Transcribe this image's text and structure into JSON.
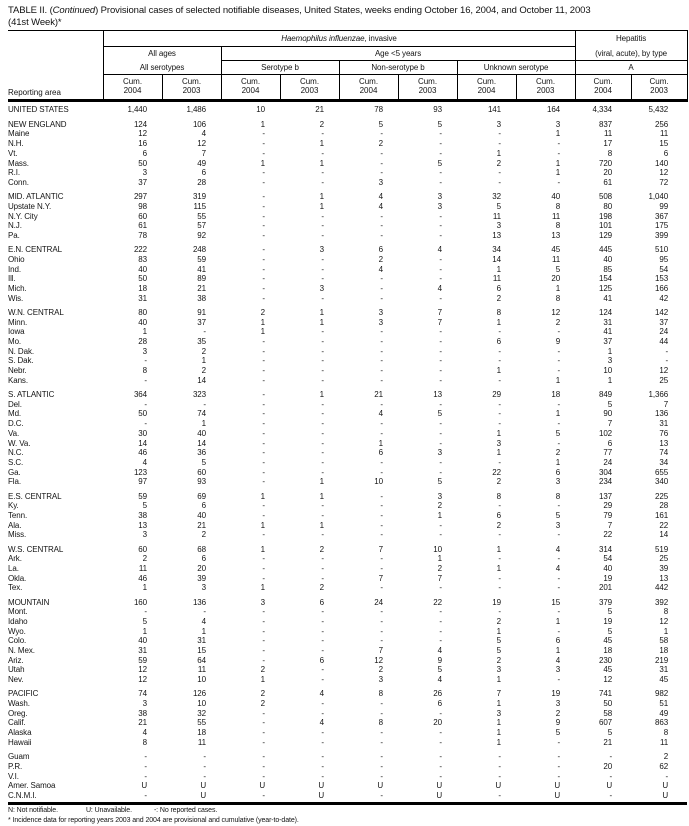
{
  "title": {
    "prefix": "TABLE II. (",
    "italic": "Continued",
    "suffix": ") Provisional cases of selected notifiable diseases, United States, weeks ending October 16, 2004, and October 11, 2003",
    "line2": "(41st Week)*"
  },
  "header": {
    "reporting_area": "Reporting area",
    "hi_italic": "Haemophilus influenzae",
    "hi_rest": ", invasive",
    "hep_line1": "Hepatitis",
    "hep_line2": "(viral, acute), by type",
    "all_ages": "All ages",
    "age_lt5": "Age <5 years",
    "sub_all_serotypes": "All serotypes",
    "sub_serotype_b": "Serotype b",
    "sub_non_serotype_b": "Non-serotype b",
    "sub_unknown": "Unknown serotype",
    "sub_a": "A",
    "cum_label": "Cum.",
    "col_years": [
      "2004",
      "2003",
      "2004",
      "2003",
      "2004",
      "2003",
      "2004",
      "2003",
      "2004",
      "2003"
    ]
  },
  "table": {
    "rows": [
      {
        "area": "UNITED STATES",
        "type": "total",
        "gap": false,
        "values": [
          "1,440",
          "1,486",
          "10",
          "21",
          "78",
          "93",
          "141",
          "164",
          "4,334",
          "5,432"
        ]
      },
      {
        "area": "NEW ENGLAND",
        "type": "section",
        "gap": true,
        "values": [
          "124",
          "106",
          "1",
          "2",
          "5",
          "5",
          "3",
          "3",
          "837",
          "256"
        ]
      },
      {
        "area": "Maine",
        "type": "state",
        "gap": false,
        "values": [
          "12",
          "4",
          "-",
          "-",
          "-",
          "-",
          "-",
          "1",
          "11",
          "11"
        ]
      },
      {
        "area": "N.H.",
        "type": "state",
        "gap": false,
        "values": [
          "16",
          "12",
          "-",
          "1",
          "2",
          "-",
          "-",
          "-",
          "17",
          "15"
        ]
      },
      {
        "area": "Vt.",
        "type": "state",
        "gap": false,
        "values": [
          "6",
          "7",
          "-",
          "-",
          "-",
          "-",
          "1",
          "-",
          "8",
          "6"
        ]
      },
      {
        "area": "Mass.",
        "type": "state",
        "gap": false,
        "values": [
          "50",
          "49",
          "1",
          "1",
          "-",
          "5",
          "2",
          "1",
          "720",
          "140"
        ]
      },
      {
        "area": "R.I.",
        "type": "state",
        "gap": false,
        "values": [
          "3",
          "6",
          "-",
          "-",
          "-",
          "-",
          "-",
          "1",
          "20",
          "12"
        ]
      },
      {
        "area": "Conn.",
        "type": "state",
        "gap": false,
        "values": [
          "37",
          "28",
          "-",
          "-",
          "3",
          "-",
          "-",
          "-",
          "61",
          "72"
        ]
      },
      {
        "area": "MID. ATLANTIC",
        "type": "section",
        "gap": true,
        "values": [
          "297",
          "319",
          "-",
          "1",
          "4",
          "3",
          "32",
          "40",
          "508",
          "1,040"
        ]
      },
      {
        "area": "Upstate N.Y.",
        "type": "state",
        "gap": false,
        "values": [
          "98",
          "115",
          "-",
          "1",
          "4",
          "3",
          "5",
          "8",
          "80",
          "99"
        ]
      },
      {
        "area": "N.Y. City",
        "type": "state",
        "gap": false,
        "values": [
          "60",
          "55",
          "-",
          "-",
          "-",
          "-",
          "11",
          "11",
          "198",
          "367"
        ]
      },
      {
        "area": "N.J.",
        "type": "state",
        "gap": false,
        "values": [
          "61",
          "57",
          "-",
          "-",
          "-",
          "-",
          "3",
          "8",
          "101",
          "175"
        ]
      },
      {
        "area": "Pa.",
        "type": "state",
        "gap": false,
        "values": [
          "78",
          "92",
          "-",
          "-",
          "-",
          "-",
          "13",
          "13",
          "129",
          "399"
        ]
      },
      {
        "area": "E.N. CENTRAL",
        "type": "section",
        "gap": true,
        "values": [
          "222",
          "248",
          "-",
          "3",
          "6",
          "4",
          "34",
          "45",
          "445",
          "510"
        ]
      },
      {
        "area": "Ohio",
        "type": "state",
        "gap": false,
        "values": [
          "83",
          "59",
          "-",
          "-",
          "2",
          "-",
          "14",
          "11",
          "40",
          "95"
        ]
      },
      {
        "area": "Ind.",
        "type": "state",
        "gap": false,
        "values": [
          "40",
          "41",
          "-",
          "-",
          "4",
          "-",
          "1",
          "5",
          "85",
          "54"
        ]
      },
      {
        "area": "Ill.",
        "type": "state",
        "gap": false,
        "values": [
          "50",
          "89",
          "-",
          "-",
          "-",
          "-",
          "11",
          "20",
          "154",
          "153"
        ]
      },
      {
        "area": "Mich.",
        "type": "state",
        "gap": false,
        "values": [
          "18",
          "21",
          "-",
          "3",
          "-",
          "4",
          "6",
          "1",
          "125",
          "166"
        ]
      },
      {
        "area": "Wis.",
        "type": "state",
        "gap": false,
        "values": [
          "31",
          "38",
          "-",
          "-",
          "-",
          "-",
          "2",
          "8",
          "41",
          "42"
        ]
      },
      {
        "area": "W.N. CENTRAL",
        "type": "section",
        "gap": true,
        "values": [
          "80",
          "91",
          "2",
          "1",
          "3",
          "7",
          "8",
          "12",
          "124",
          "142"
        ]
      },
      {
        "area": "Minn.",
        "type": "state",
        "gap": false,
        "values": [
          "40",
          "37",
          "1",
          "1",
          "3",
          "7",
          "1",
          "2",
          "31",
          "37"
        ]
      },
      {
        "area": "Iowa",
        "type": "state",
        "gap": false,
        "values": [
          "1",
          "-",
          "1",
          "-",
          "-",
          "-",
          "-",
          "-",
          "41",
          "24"
        ]
      },
      {
        "area": "Mo.",
        "type": "state",
        "gap": false,
        "values": [
          "28",
          "35",
          "-",
          "-",
          "-",
          "-",
          "6",
          "9",
          "37",
          "44"
        ]
      },
      {
        "area": "N. Dak.",
        "type": "state",
        "gap": false,
        "values": [
          "3",
          "2",
          "-",
          "-",
          "-",
          "-",
          "-",
          "-",
          "1",
          "-"
        ]
      },
      {
        "area": "S. Dak.",
        "type": "state",
        "gap": false,
        "values": [
          "-",
          "1",
          "-",
          "-",
          "-",
          "-",
          "-",
          "-",
          "3",
          "-"
        ]
      },
      {
        "area": "Nebr.",
        "type": "state",
        "gap": false,
        "values": [
          "8",
          "2",
          "-",
          "-",
          "-",
          "-",
          "1",
          "-",
          "10",
          "12"
        ]
      },
      {
        "area": "Kans.",
        "type": "state",
        "gap": false,
        "values": [
          "-",
          "14",
          "-",
          "-",
          "-",
          "-",
          "-",
          "1",
          "1",
          "25"
        ]
      },
      {
        "area": "S. ATLANTIC",
        "type": "section",
        "gap": true,
        "values": [
          "364",
          "323",
          "-",
          "1",
          "21",
          "13",
          "29",
          "18",
          "849",
          "1,366"
        ]
      },
      {
        "area": "Del.",
        "type": "state",
        "gap": false,
        "values": [
          "-",
          "-",
          "-",
          "-",
          "-",
          "-",
          "-",
          "-",
          "5",
          "7"
        ]
      },
      {
        "area": "Md.",
        "type": "state",
        "gap": false,
        "values": [
          "50",
          "74",
          "-",
          "-",
          "4",
          "5",
          "-",
          "1",
          "90",
          "136"
        ]
      },
      {
        "area": "D.C.",
        "type": "state",
        "gap": false,
        "values": [
          "-",
          "1",
          "-",
          "-",
          "-",
          "-",
          "-",
          "-",
          "7",
          "31"
        ]
      },
      {
        "area": "Va.",
        "type": "state",
        "gap": false,
        "values": [
          "30",
          "40",
          "-",
          "-",
          "-",
          "-",
          "1",
          "5",
          "102",
          "76"
        ]
      },
      {
        "area": "W. Va.",
        "type": "state",
        "gap": false,
        "values": [
          "14",
          "14",
          "-",
          "-",
          "1",
          "-",
          "3",
          "-",
          "6",
          "13"
        ]
      },
      {
        "area": "N.C.",
        "type": "state",
        "gap": false,
        "values": [
          "46",
          "36",
          "-",
          "-",
          "6",
          "3",
          "1",
          "2",
          "77",
          "74"
        ]
      },
      {
        "area": "S.C.",
        "type": "state",
        "gap": false,
        "values": [
          "4",
          "5",
          "-",
          "-",
          "-",
          "-",
          "-",
          "1",
          "24",
          "34"
        ]
      },
      {
        "area": "Ga.",
        "type": "state",
        "gap": false,
        "values": [
          "123",
          "60",
          "-",
          "-",
          "-",
          "-",
          "22",
          "6",
          "304",
          "655"
        ]
      },
      {
        "area": "Fla.",
        "type": "state",
        "gap": false,
        "values": [
          "97",
          "93",
          "-",
          "1",
          "10",
          "5",
          "2",
          "3",
          "234",
          "340"
        ]
      },
      {
        "area": "E.S. CENTRAL",
        "type": "section",
        "gap": true,
        "values": [
          "59",
          "69",
          "1",
          "1",
          "-",
          "3",
          "8",
          "8",
          "137",
          "225"
        ]
      },
      {
        "area": "Ky.",
        "type": "state",
        "gap": false,
        "values": [
          "5",
          "6",
          "-",
          "-",
          "-",
          "2",
          "-",
          "-",
          "29",
          "28"
        ]
      },
      {
        "area": "Tenn.",
        "type": "state",
        "gap": false,
        "values": [
          "38",
          "40",
          "-",
          "-",
          "-",
          "1",
          "6",
          "5",
          "79",
          "161"
        ]
      },
      {
        "area": "Ala.",
        "type": "state",
        "gap": false,
        "values": [
          "13",
          "21",
          "1",
          "1",
          "-",
          "-",
          "2",
          "3",
          "7",
          "22"
        ]
      },
      {
        "area": "Miss.",
        "type": "state",
        "gap": false,
        "values": [
          "3",
          "2",
          "-",
          "-",
          "-",
          "-",
          "-",
          "-",
          "22",
          "14"
        ]
      },
      {
        "area": "W.S. CENTRAL",
        "type": "section",
        "gap": true,
        "values": [
          "60",
          "68",
          "1",
          "2",
          "7",
          "10",
          "1",
          "4",
          "314",
          "519"
        ]
      },
      {
        "area": "Ark.",
        "type": "state",
        "gap": false,
        "values": [
          "2",
          "6",
          "-",
          "-",
          "-",
          "1",
          "-",
          "-",
          "54",
          "25"
        ]
      },
      {
        "area": "La.",
        "type": "state",
        "gap": false,
        "values": [
          "11",
          "20",
          "-",
          "-",
          "-",
          "2",
          "1",
          "4",
          "40",
          "39"
        ]
      },
      {
        "area": "Okla.",
        "type": "state",
        "gap": false,
        "values": [
          "46",
          "39",
          "-",
          "-",
          "7",
          "7",
          "-",
          "-",
          "19",
          "13"
        ]
      },
      {
        "area": "Tex.",
        "type": "state",
        "gap": false,
        "values": [
          "1",
          "3",
          "1",
          "2",
          "-",
          "-",
          "-",
          "-",
          "201",
          "442"
        ]
      },
      {
        "area": "MOUNTAIN",
        "type": "section",
        "gap": true,
        "values": [
          "160",
          "136",
          "3",
          "6",
          "24",
          "22",
          "19",
          "15",
          "379",
          "392"
        ]
      },
      {
        "area": "Mont.",
        "type": "state",
        "gap": false,
        "values": [
          "-",
          "-",
          "-",
          "-",
          "-",
          "-",
          "-",
          "-",
          "5",
          "8"
        ]
      },
      {
        "area": "Idaho",
        "type": "state",
        "gap": false,
        "values": [
          "5",
          "4",
          "-",
          "-",
          "-",
          "-",
          "2",
          "1",
          "19",
          "12"
        ]
      },
      {
        "area": "Wyo.",
        "type": "state",
        "gap": false,
        "values": [
          "1",
          "1",
          "-",
          "-",
          "-",
          "-",
          "1",
          "-",
          "5",
          "1"
        ]
      },
      {
        "area": "Colo.",
        "type": "state",
        "gap": false,
        "values": [
          "40",
          "31",
          "-",
          "-",
          "-",
          "-",
          "5",
          "6",
          "45",
          "58"
        ]
      },
      {
        "area": "N. Mex.",
        "type": "state",
        "gap": false,
        "values": [
          "31",
          "15",
          "-",
          "-",
          "7",
          "4",
          "5",
          "1",
          "18",
          "18"
        ]
      },
      {
        "area": "Ariz.",
        "type": "state",
        "gap": false,
        "values": [
          "59",
          "64",
          "-",
          "6",
          "12",
          "9",
          "2",
          "4",
          "230",
          "219"
        ]
      },
      {
        "area": "Utah",
        "type": "state",
        "gap": false,
        "values": [
          "12",
          "11",
          "2",
          "-",
          "2",
          "5",
          "3",
          "3",
          "45",
          "31"
        ]
      },
      {
        "area": "Nev.",
        "type": "state",
        "gap": false,
        "values": [
          "12",
          "10",
          "1",
          "-",
          "3",
          "4",
          "1",
          "-",
          "12",
          "45"
        ]
      },
      {
        "area": "PACIFIC",
        "type": "section",
        "gap": true,
        "values": [
          "74",
          "126",
          "2",
          "4",
          "8",
          "26",
          "7",
          "19",
          "741",
          "982"
        ]
      },
      {
        "area": "Wash.",
        "type": "state",
        "gap": false,
        "values": [
          "3",
          "10",
          "2",
          "-",
          "-",
          "6",
          "1",
          "3",
          "50",
          "51"
        ]
      },
      {
        "area": "Oreg.",
        "type": "state",
        "gap": false,
        "values": [
          "38",
          "32",
          "-",
          "-",
          "-",
          "-",
          "3",
          "2",
          "58",
          "49"
        ]
      },
      {
        "area": "Calif.",
        "type": "state",
        "gap": false,
        "values": [
          "21",
          "55",
          "-",
          "4",
          "8",
          "20",
          "1",
          "9",
          "607",
          "863"
        ]
      },
      {
        "area": "Alaska",
        "type": "state",
        "gap": false,
        "values": [
          "4",
          "18",
          "-",
          "-",
          "-",
          "-",
          "1",
          "5",
          "5",
          "8"
        ]
      },
      {
        "area": "Hawaii",
        "type": "state",
        "gap": false,
        "values": [
          "8",
          "11",
          "-",
          "-",
          "-",
          "-",
          "1",
          "-",
          "21",
          "11"
        ]
      },
      {
        "area": "Guam",
        "type": "territory",
        "gap": true,
        "values": [
          "-",
          "-",
          "-",
          "-",
          "-",
          "-",
          "-",
          "-",
          "-",
          "2"
        ]
      },
      {
        "area": "P.R.",
        "type": "territory",
        "gap": false,
        "values": [
          "-",
          "-",
          "-",
          "-",
          "-",
          "-",
          "-",
          "-",
          "20",
          "62"
        ]
      },
      {
        "area": "V.I.",
        "type": "territory",
        "gap": false,
        "values": [
          "-",
          "-",
          "-",
          "-",
          "-",
          "-",
          "-",
          "-",
          "-",
          "-"
        ]
      },
      {
        "area": "Amer. Samoa",
        "type": "territory",
        "gap": false,
        "values": [
          "U",
          "U",
          "U",
          "U",
          "U",
          "U",
          "U",
          "U",
          "U",
          "U"
        ]
      },
      {
        "area": "C.N.M.I.",
        "type": "territory",
        "gap": false,
        "values": [
          "-",
          "U",
          "-",
          "U",
          "-",
          "U",
          "-",
          "U",
          "-",
          "U"
        ]
      }
    ]
  },
  "footnotes": {
    "n": "N: Not notifiable.",
    "u": "U: Unavailable.",
    "dash": "-: No reported cases.",
    "star": "* Incidence data for reporting years 2003 and 2004 are provisional and cumulative (year-to-date)."
  }
}
